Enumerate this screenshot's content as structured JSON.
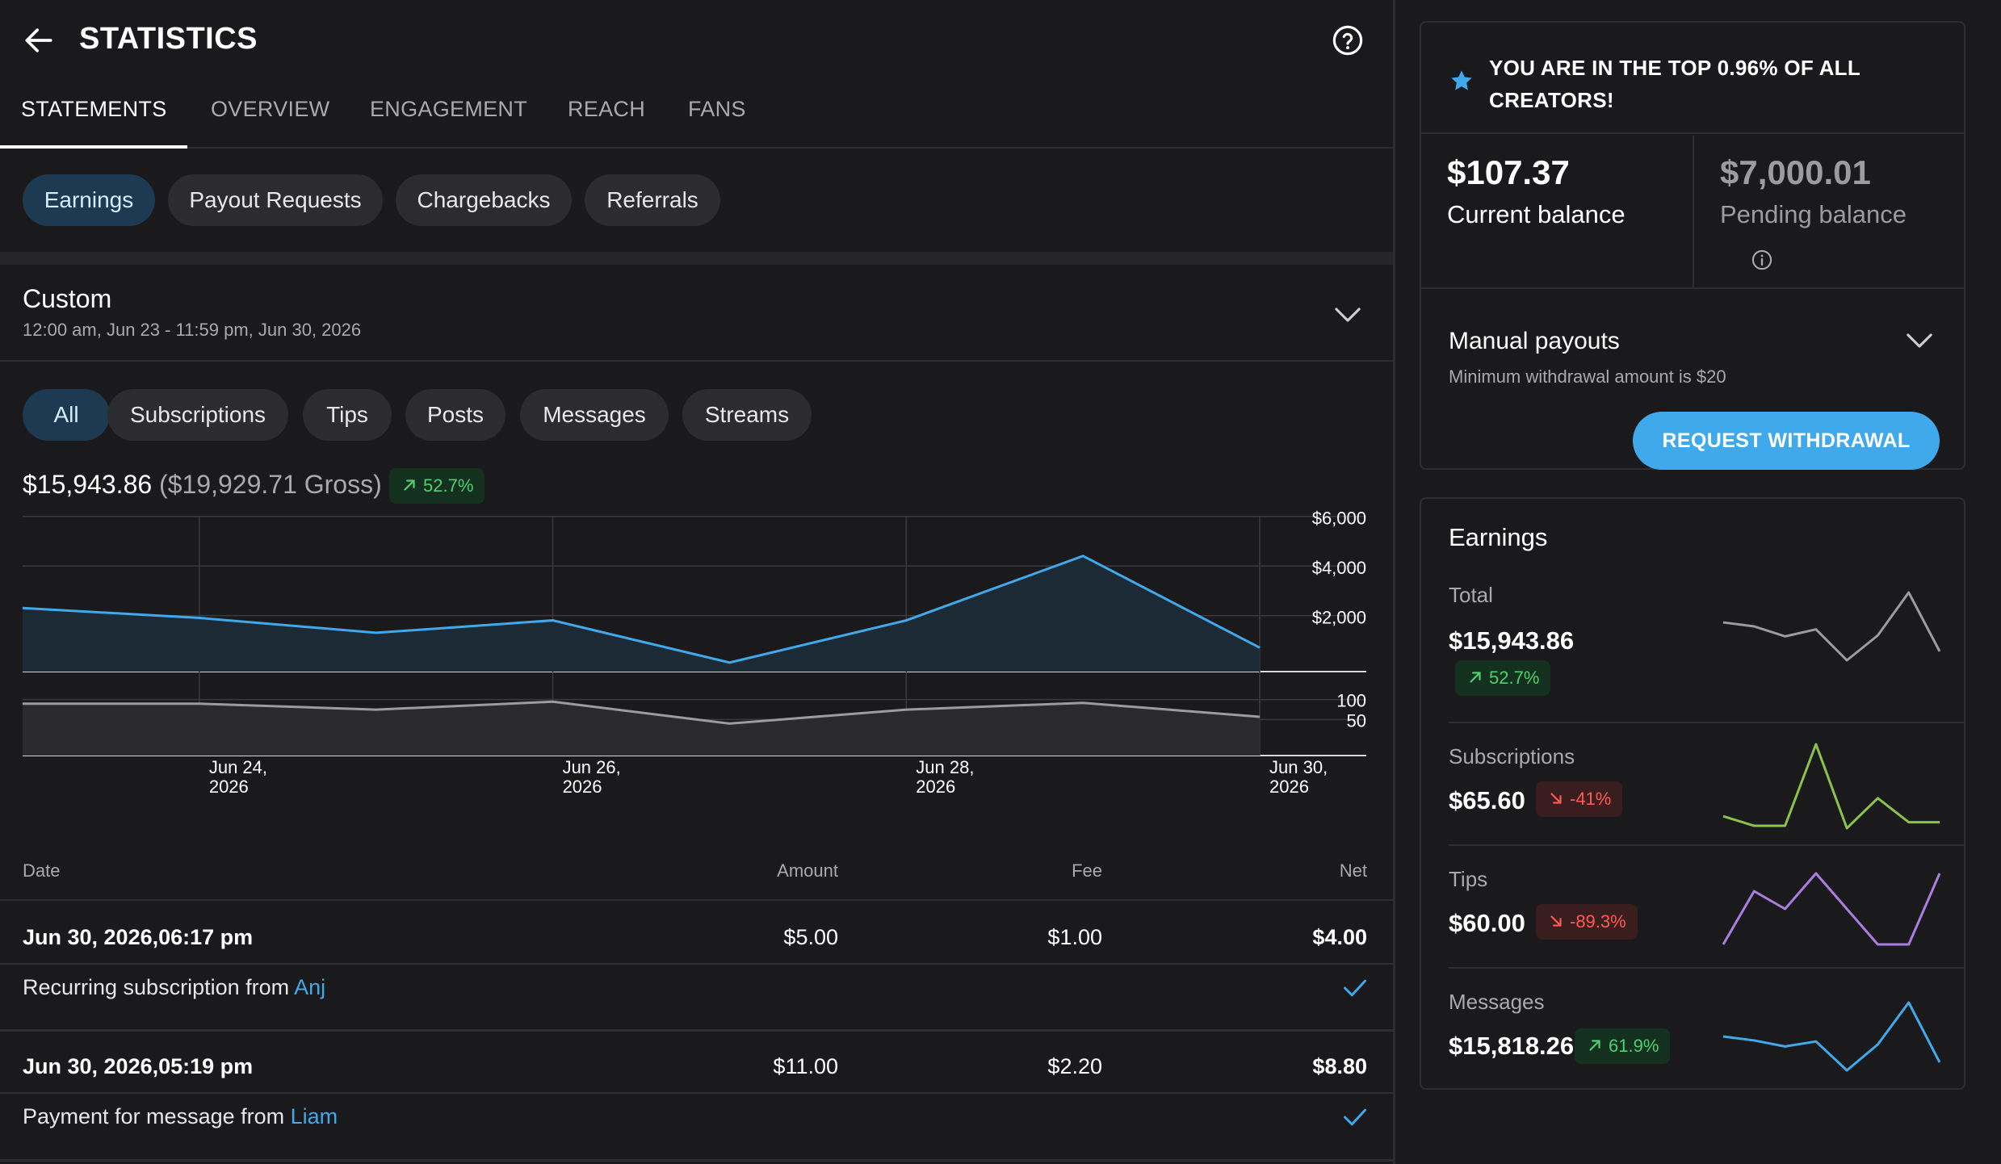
{
  "header": {
    "title": "STATISTICS",
    "back_icon": "arrow-left-icon",
    "help_icon": "help-circle-icon"
  },
  "tabs": [
    {
      "label": "STATEMENTS",
      "active": true
    },
    {
      "label": "OVERVIEW"
    },
    {
      "label": "ENGAGEMENT"
    },
    {
      "label": "REACH"
    },
    {
      "label": "FANS"
    }
  ],
  "statement_filters": [
    "Earnings",
    "Payout Requests",
    "Chargebacks",
    "Referrals"
  ],
  "period": {
    "title": "Custom",
    "range": "12:00 am, Jun 23 - 11:59 pm, Jun 30, 2026"
  },
  "type_filters": [
    "All",
    "Subscriptions",
    "Tips",
    "Posts",
    "Messages",
    "Streams"
  ],
  "summary": {
    "net": "$15,943.86",
    "gross": "($19,929.71 Gross)",
    "change": "52.7%"
  },
  "chart_data": {
    "type": "area",
    "x": [
      "Jun 23, 2026",
      "Jun 24, 2026",
      "Jun 25, 2026",
      "Jun 26, 2026",
      "Jun 27, 2026",
      "Jun 28, 2026",
      "Jun 29, 2026",
      "Jun 30, 2026"
    ],
    "x_tick_labels": [
      "Jun 24,\n2026",
      "Jun 26,\n2026",
      "Jun 28,\n2026",
      "Jun 30,\n2026"
    ],
    "series": [
      {
        "values": [
          2500,
          2100,
          1500,
          2000,
          300,
          2000,
          4600,
          900
        ],
        "axis": "amount",
        "color": "#3fa9ec"
      },
      {
        "values": [
          110,
          110,
          95,
          115,
          60,
          95,
          112,
          77
        ],
        "axis": "count",
        "color": "#9b9ba0"
      }
    ],
    "amount_axis": {
      "ticks": [
        "$6,000",
        "$4,000",
        "$2,000"
      ],
      "ylim": [
        0,
        6000
      ]
    },
    "count_axis": {
      "ticks": [
        "100",
        "50"
      ],
      "ylim": [
        0,
        150
      ]
    },
    "grid": true
  },
  "table": {
    "columns": [
      "Date",
      "Amount",
      "Fee",
      "Net"
    ],
    "rows": [
      {
        "date": "Jun 30, 2026,06:17 pm",
        "amount": "$5.00",
        "fee": "$1.00",
        "net": "$4.00",
        "desc": "Recurring subscription from ",
        "user": "Anj"
      },
      {
        "date": "Jun 30, 2026,05:19 pm",
        "amount": "$11.00",
        "fee": "$2.20",
        "net": "$8.80",
        "desc": "Payment for message from ",
        "user": "Liam"
      }
    ]
  },
  "banner": {
    "text": "YOU ARE IN THE TOP 0.96% OF ALL CREATORS!"
  },
  "balances": {
    "current": {
      "value": "$107.37",
      "label": "Current balance"
    },
    "pending": {
      "value": "$7,000.01",
      "label": "Pending balance"
    }
  },
  "payouts": {
    "title": "Manual payouts",
    "subtitle": "Minimum withdrawal amount is $20",
    "button": "REQUEST WITHDRAWAL"
  },
  "earnings": {
    "title": "Earnings",
    "metrics": [
      {
        "label": "Total",
        "value": "$15,943.86",
        "change": "52.7%",
        "direction": "up",
        "color": "#9b9ba0",
        "spark": [
          5,
          4.6,
          3.6,
          4.3,
          1.2,
          3.7,
          8,
          2.1
        ]
      },
      {
        "label": "Subscriptions",
        "value": "$65.60",
        "change": "-41%",
        "direction": "down",
        "color": "#8bc34a",
        "spark": [
          2,
          1.2,
          1.2,
          8,
          1,
          3.5,
          1.5,
          1.5
        ]
      },
      {
        "label": "Tips",
        "value": "$60.00",
        "change": "-89.3%",
        "direction": "down",
        "color": "#a97ee0",
        "spark": [
          1,
          5.5,
          4,
          7,
          4,
          1,
          1,
          7
        ]
      },
      {
        "label": "Messages",
        "value": "$15,818.26",
        "change": "61.9%",
        "direction": "up",
        "color": "#3fa9ec",
        "spark": [
          4.6,
          4.2,
          3.6,
          4.1,
          1.2,
          3.8,
          8,
          2
        ]
      }
    ]
  }
}
